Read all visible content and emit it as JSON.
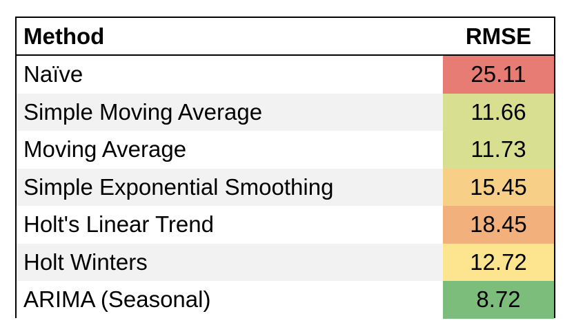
{
  "chart_data": {
    "type": "table",
    "columns": [
      "Method",
      "RMSE"
    ],
    "rows": [
      {
        "method": "Naïve",
        "rmse": "25.11",
        "color": "#e67c73"
      },
      {
        "method": "Simple Moving Average",
        "rmse": "11.66",
        "color": "#d9df90"
      },
      {
        "method": "Moving Average",
        "rmse": "11.73",
        "color": "#d9df90"
      },
      {
        "method": "Simple Exponential Smoothing",
        "rmse": "15.45",
        "color": "#f8cf87"
      },
      {
        "method": "Holt's Linear Trend",
        "rmse": "18.45",
        "color": "#f2b07d"
      },
      {
        "method": "Holt Winters",
        "rmse": "12.72",
        "color": "#fde58f"
      },
      {
        "method": "ARIMA (Seasonal)",
        "rmse": "8.72",
        "color": "#7dbd7b"
      }
    ]
  }
}
